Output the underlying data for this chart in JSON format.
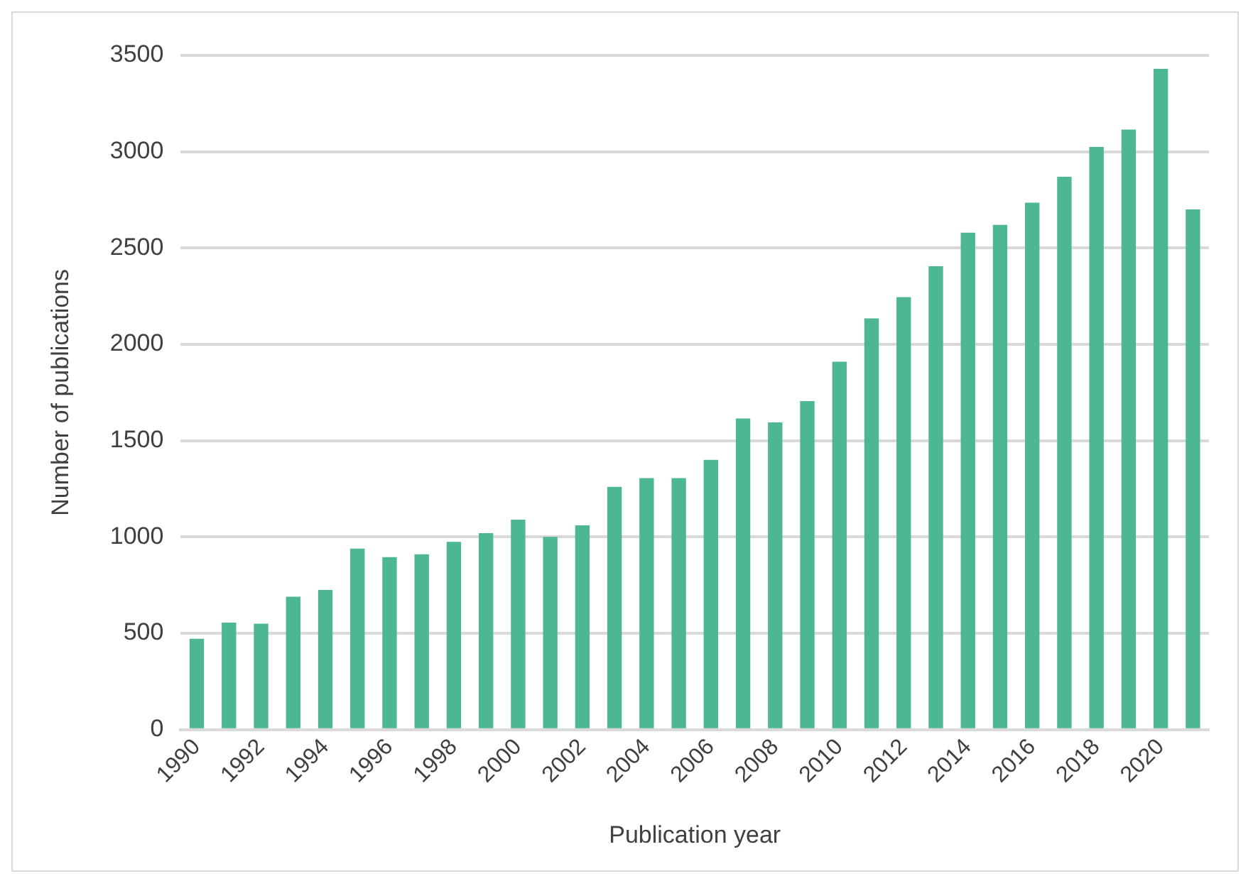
{
  "chart_data": {
    "type": "bar",
    "xlabel": "Publication year",
    "ylabel": "Number of publications",
    "categories": [
      "1990",
      null,
      "1992",
      null,
      "1994",
      null,
      "1996",
      null,
      "1998",
      null,
      "2000",
      null,
      "2002",
      null,
      "2004",
      null,
      "2006",
      null,
      "2008",
      null,
      "2010",
      null,
      "2012",
      null,
      "2014",
      null,
      "2016",
      null,
      "2018",
      null,
      "2020",
      null
    ],
    "values": [
      472,
      555,
      550,
      690,
      725,
      940,
      895,
      910,
      975,
      1020,
      1090,
      1000,
      1060,
      1260,
      1305,
      1305,
      1400,
      1615,
      1595,
      1705,
      1910,
      2135,
      2245,
      2405,
      2580,
      2620,
      2735,
      2870,
      3025,
      3115,
      3430,
      2700
    ],
    "color": "#4db692",
    "ylim": [
      0,
      3500
    ],
    "yticks": [
      0,
      500,
      1000,
      1500,
      2000,
      2500,
      3000,
      3500
    ],
    "grid": "y"
  }
}
